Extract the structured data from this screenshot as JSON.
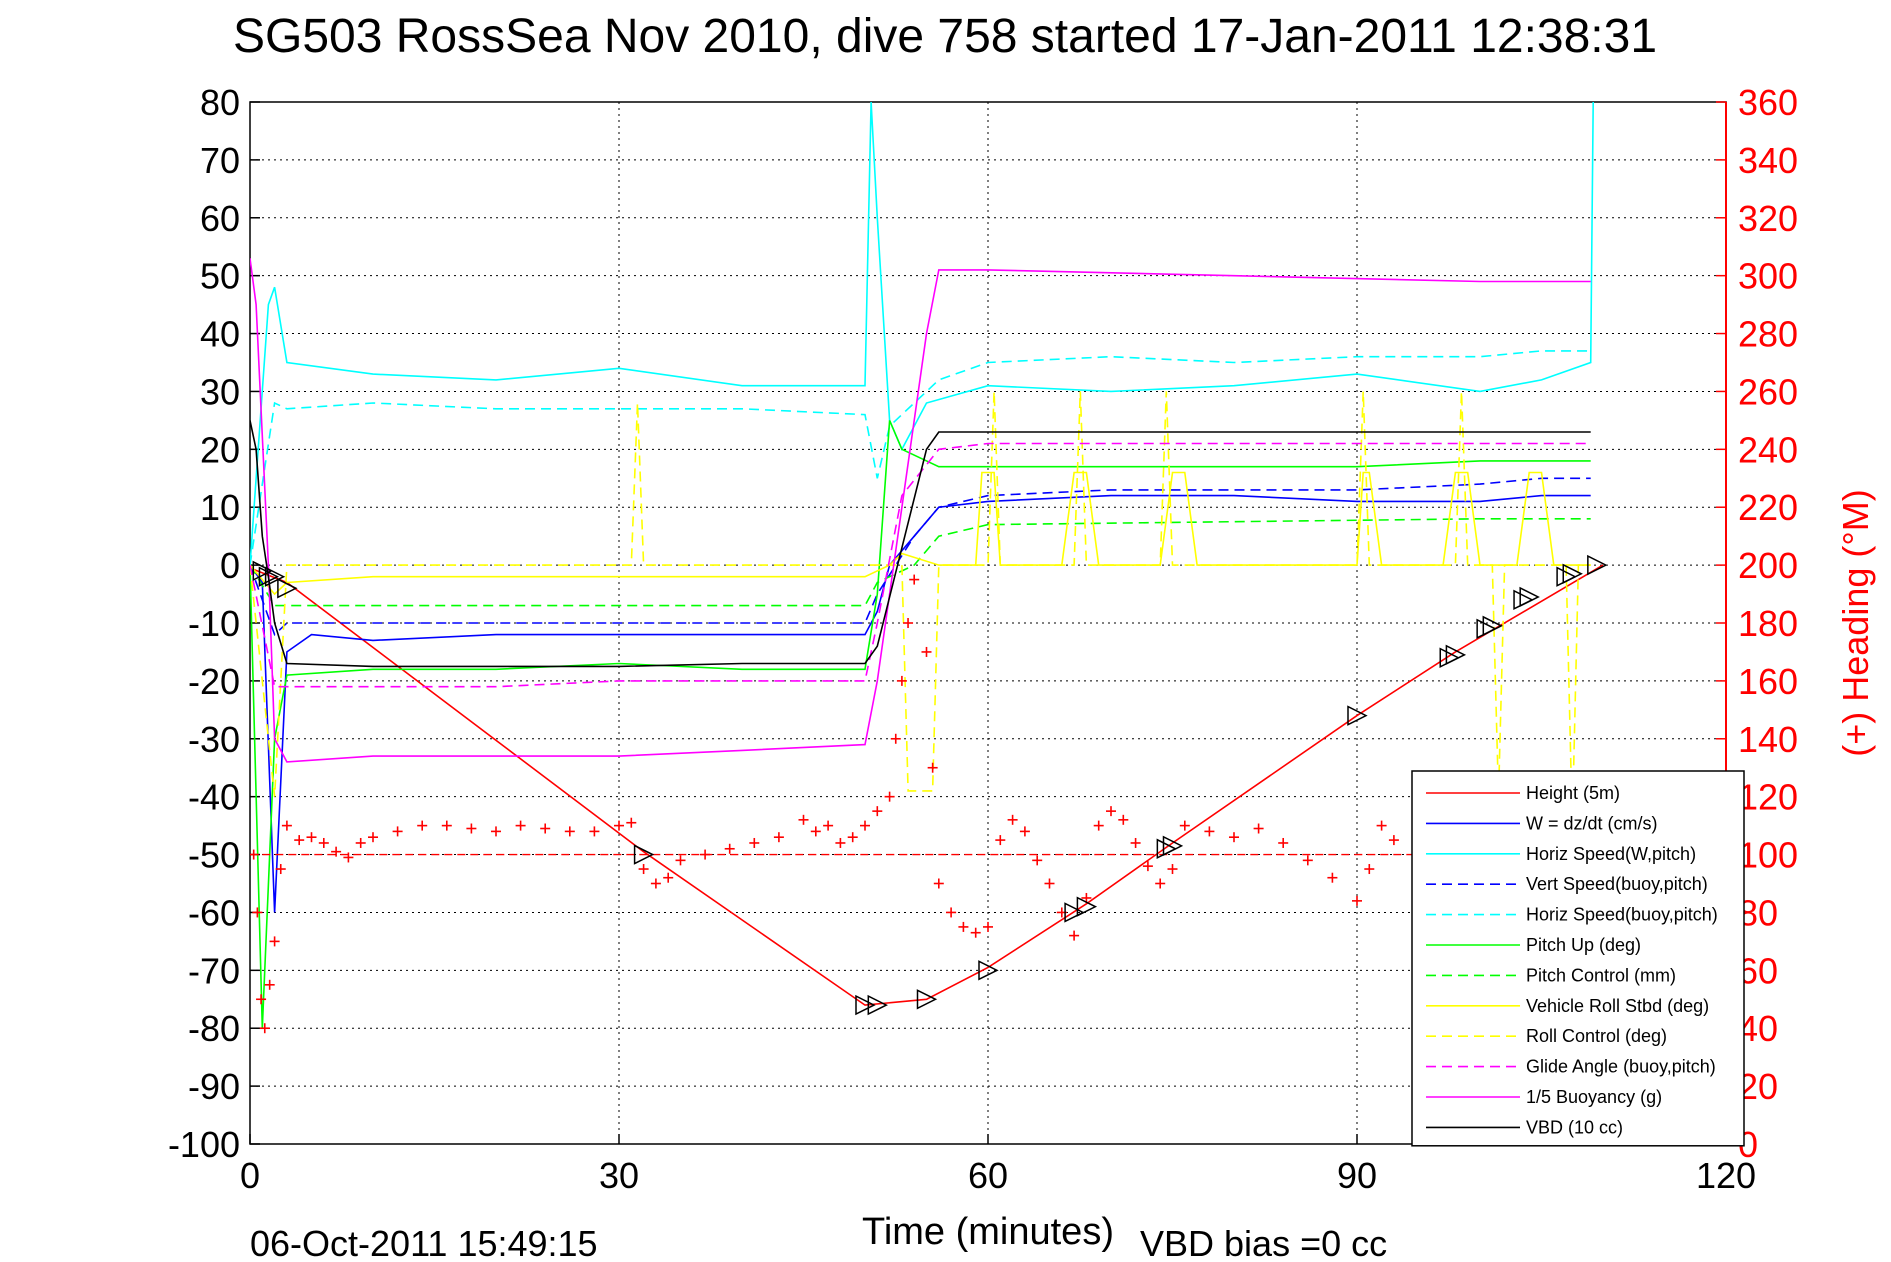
{
  "chart_data": {
    "type": "line",
    "title": "SG503 RossSea Nov 2010, dive 758 started 17-Jan-2011 12:38:31",
    "xlabel": "Time (minutes)",
    "ylabel_right": "(+) Heading (°M)",
    "footer_date": "06-Oct-2011 15:49:15",
    "footer_note": "VBD bias =0 cc",
    "xlim": [
      0,
      120
    ],
    "ylim": [
      -100,
      80
    ],
    "ylim_right": [
      0,
      360
    ],
    "x_ticks": [
      0,
      30,
      60,
      90,
      120
    ],
    "y_ticks": [
      80,
      70,
      60,
      50,
      40,
      30,
      20,
      10,
      0,
      -10,
      -20,
      -30,
      -40,
      -50,
      -60,
      -70,
      -80,
      -90,
      -100
    ],
    "y_ticks_right": [
      360,
      340,
      320,
      300,
      280,
      260,
      240,
      220,
      200,
      180,
      160,
      140,
      120,
      100,
      80,
      60,
      40,
      20,
      0
    ],
    "grid": true,
    "legend_position": "bottom-right",
    "colors": {
      "axis_right": "#ff0000"
    },
    "series": [
      {
        "name": "Height (5m)",
        "color": "#ff0000",
        "dash": "solid",
        "x": [
          0,
          3,
          32,
          50,
          55,
          60,
          68,
          75,
          90,
          98,
          110
        ],
        "y": [
          -0.5,
          -3,
          -49.5,
          -76,
          -75,
          -69.5,
          -58.5,
          -48,
          -26,
          -15,
          0
        ]
      },
      {
        "name": "W = dz/dt (cm/s)",
        "color": "#0000ff",
        "dash": "solid",
        "x": [
          0,
          1,
          2,
          3,
          5,
          10,
          20,
          30,
          40,
          50,
          51,
          52,
          54,
          56,
          60,
          70,
          80,
          90,
          100,
          105,
          108.5,
          109
        ],
        "y": [
          0,
          -3,
          -60,
          -15,
          -12,
          -13,
          -12,
          -12,
          -12,
          -12,
          -8,
          0,
          5,
          10,
          11,
          12,
          12,
          11,
          11,
          12,
          12,
          12
        ]
      },
      {
        "name": "Horiz Speed(W,pitch)",
        "color": "#00ffff",
        "dash": "solid",
        "x": [
          0,
          1.5,
          2,
          3,
          10,
          20,
          30,
          40,
          50,
          50.5,
          51,
          52,
          53,
          55,
          60,
          70,
          80,
          90,
          100,
          105,
          109,
          109.2
        ],
        "y": [
          0,
          45,
          48,
          35,
          33,
          32,
          34,
          31,
          31,
          80,
          60,
          25,
          20,
          28,
          31,
          30,
          31,
          33,
          30,
          32,
          35,
          80
        ]
      },
      {
        "name": "Vert Speed(buoy,pitch)",
        "color": "#0000ff",
        "dash": "dash",
        "x": [
          0,
          2,
          3,
          10,
          20,
          30,
          40,
          50,
          51,
          54,
          56,
          60,
          70,
          80,
          90,
          100,
          105,
          109
        ],
        "y": [
          0,
          -12,
          -10,
          -10,
          -10,
          -10,
          -10,
          -10,
          -5,
          5,
          10,
          12,
          13,
          13,
          13,
          14,
          15,
          15
        ]
      },
      {
        "name": "Horiz Speed(buoy,pitch)",
        "color": "#00ffff",
        "dash": "dash",
        "x": [
          0,
          2,
          3,
          10,
          20,
          30,
          40,
          50,
          51,
          52,
          54,
          56,
          60,
          70,
          80,
          90,
          100,
          105,
          109
        ],
        "y": [
          0,
          28,
          27,
          28,
          27,
          27,
          27,
          26,
          15,
          24,
          28,
          32,
          35,
          36,
          35,
          36,
          36,
          37,
          37
        ]
      },
      {
        "name": "Pitch Up (deg)",
        "color": "#00ff00",
        "dash": "solid",
        "x": [
          0,
          1,
          2,
          3,
          10,
          20,
          30,
          40,
          50,
          51,
          52,
          53,
          56,
          60,
          70,
          80,
          90,
          100,
          105,
          109
        ],
        "y": [
          0,
          -80,
          -30,
          -19,
          -18,
          -18,
          -17,
          -18,
          -18,
          -5,
          25,
          20,
          17,
          17,
          17,
          17,
          17,
          18,
          18,
          18
        ]
      },
      {
        "name": "Pitch Control (mm)",
        "color": "#00ff00",
        "dash": "dash",
        "x": [
          0,
          2,
          3,
          50,
          51,
          54,
          56,
          60,
          80,
          100,
          109
        ],
        "y": [
          0,
          -7,
          -7,
          -7,
          -3,
          0,
          5,
          7,
          7.5,
          8,
          8
        ]
      },
      {
        "name": "Vehicle Roll Stbd (deg)",
        "color": "#ffff00",
        "dash": "solid",
        "x": [
          0,
          2,
          3,
          10,
          20,
          30,
          40,
          50,
          52,
          53,
          56,
          59,
          59.5,
          60.5,
          61,
          66,
          67,
          68,
          69,
          74,
          75,
          76,
          77,
          90,
          90.5,
          91,
          92,
          97,
          98,
          99,
          100,
          103,
          104,
          105,
          106,
          109
        ],
        "y": [
          0,
          -5,
          -3,
          -2,
          -2,
          -2,
          -2,
          -2,
          0,
          2,
          0,
          0,
          16,
          16,
          0,
          0,
          16,
          16,
          0,
          0,
          16,
          16,
          0,
          0,
          16,
          16,
          0,
          0,
          16,
          16,
          0,
          0,
          16,
          16,
          0,
          0
        ]
      },
      {
        "name": "Roll Control (deg)",
        "color": "#ffff00",
        "dash": "dash",
        "x": [
          0,
          2,
          3,
          31,
          31.5,
          32,
          50,
          53,
          53.5,
          55.5,
          56,
          60,
          60.5,
          61,
          67,
          67.5,
          68,
          74,
          74.5,
          75,
          90,
          90.5,
          91,
          98,
          98.5,
          99,
          100,
          101,
          101.5,
          102,
          106,
          107,
          107.5,
          108,
          109
        ],
        "y": [
          0,
          -40,
          0,
          0,
          28,
          0,
          0,
          0,
          -39,
          -39,
          0,
          0,
          30,
          0,
          0,
          30,
          0,
          0,
          30,
          0,
          0,
          30,
          0,
          0,
          30,
          0,
          0,
          0,
          -40,
          0,
          0,
          0,
          -45,
          0,
          0
        ]
      },
      {
        "name": "Glide Angle (buoy,pitch)",
        "color": "#ff00ff",
        "dash": "dash",
        "x": [
          0,
          2,
          3,
          10,
          20,
          30,
          40,
          50,
          51,
          53,
          56,
          60,
          70,
          80,
          90,
          100,
          105,
          109
        ],
        "y": [
          0,
          -21,
          -21,
          -21,
          -21,
          -20,
          -20,
          -20,
          -10,
          12,
          20,
          21,
          21,
          21,
          21,
          21,
          21,
          21
        ]
      },
      {
        "name": "1/5 Buoyancy (g)",
        "color": "#ff00ff",
        "dash": "solid",
        "x": [
          0,
          0.5,
          1.5,
          2,
          3,
          10,
          20,
          30,
          40,
          50,
          51,
          55,
          56,
          60,
          80,
          100,
          109
        ],
        "y": [
          53,
          45,
          0,
          -30,
          -34,
          -33,
          -33,
          -33,
          -32,
          -31,
          -20,
          40,
          51,
          51,
          50,
          49,
          49
        ]
      },
      {
        "name": "VBD (10 cc)",
        "color": "#000000",
        "dash": "solid",
        "x": [
          0,
          0.5,
          1,
          1.5,
          2,
          3,
          10,
          20,
          30,
          40,
          50,
          51,
          55,
          56,
          60,
          80,
          100,
          109
        ],
        "y": [
          25,
          20,
          5,
          -2,
          -10,
          -17,
          -17.5,
          -17.5,
          -17.5,
          -17,
          -17,
          -14,
          20,
          23,
          23,
          23,
          23,
          23
        ]
      }
    ],
    "heading_series": {
      "name": "Heading",
      "color": "#ff0000",
      "marker": "+",
      "axis": "right",
      "reference_heading": 100,
      "x": [
        0.3,
        0.6,
        0.9,
        1.2,
        1.6,
        2,
        2.5,
        3,
        4,
        5,
        6,
        7,
        8,
        9,
        10,
        12,
        14,
        16,
        18,
        20,
        22,
        24,
        26,
        28,
        30,
        31,
        32,
        33,
        34,
        35,
        37,
        39,
        41,
        43,
        45,
        46,
        47,
        48,
        49,
        50,
        51,
        52,
        52.5,
        53,
        53.5,
        54,
        55,
        55.5,
        56,
        57,
        58,
        59,
        60,
        61,
        62,
        63,
        64,
        65,
        66,
        67,
        68,
        69,
        70,
        71,
        72,
        73,
        74,
        75,
        76,
        78,
        80,
        82,
        84,
        86,
        88,
        90,
        91,
        92,
        93
      ],
      "y": [
        100,
        80,
        50,
        40,
        55,
        70,
        95,
        110,
        105,
        106,
        104,
        101,
        99,
        104,
        106,
        108,
        110,
        110,
        109,
        108,
        110,
        109,
        108,
        108,
        110,
        111,
        95,
        90,
        92,
        98,
        100,
        102,
        104,
        106,
        112,
        108,
        110,
        104,
        106,
        110,
        115,
        120,
        140,
        160,
        180,
        195,
        170,
        130,
        90,
        80,
        75,
        73,
        75,
        105,
        112,
        108,
        98,
        90,
        80,
        72,
        85,
        110,
        115,
        112,
        104,
        96,
        90,
        95,
        110,
        108,
        106,
        109,
        104,
        98,
        92,
        84,
        95,
        110,
        105
      ]
    },
    "markers": {
      "name": "apogee/flare triangles",
      "color": "#000000",
      "x": [
        1,
        1.5,
        2,
        3,
        32,
        50,
        51,
        55,
        60,
        67,
        68,
        74.5,
        75,
        90,
        97.5,
        98,
        100.5,
        101,
        103.5,
        104,
        107,
        107.5,
        109.5
      ],
      "y": [
        -1,
        -2,
        -2,
        -4,
        -50,
        -76,
        -76,
        -75,
        -70,
        -60,
        -59,
        -49,
        -48.5,
        -26,
        -16,
        -15.5,
        -11,
        -10.5,
        -6,
        -5.5,
        -2,
        -1.5,
        0
      ]
    }
  }
}
